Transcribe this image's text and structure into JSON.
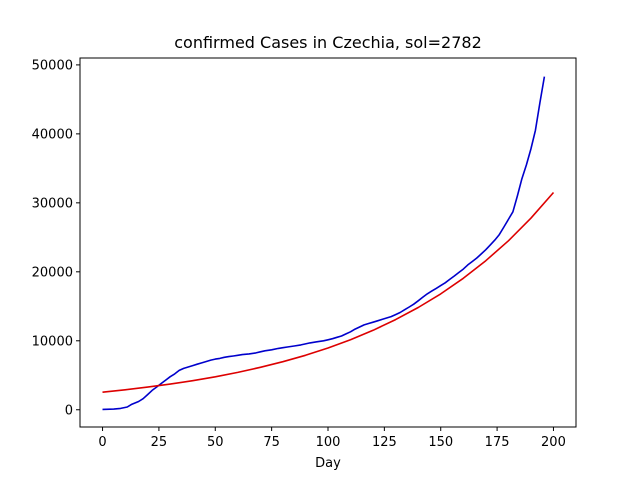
{
  "chart_data": {
    "type": "line",
    "title": "confirmed Cases in Czechia, sol=2782",
    "xlabel": "Day",
    "ylabel": "",
    "xlim": [
      -10,
      210
    ],
    "ylim": [
      -2500,
      51000
    ],
    "xticks": [
      0,
      25,
      50,
      75,
      100,
      125,
      150,
      175,
      200
    ],
    "yticks": [
      0,
      10000,
      20000,
      30000,
      40000,
      50000
    ],
    "grid": false,
    "series": [
      {
        "color": "#0000cc",
        "x": [
          0,
          5,
          8,
          11,
          13,
          16,
          18,
          20,
          22,
          24,
          26,
          28,
          30,
          32,
          34,
          36,
          38,
          40,
          42,
          44,
          46,
          48,
          50,
          52,
          54,
          56,
          58,
          60,
          62,
          65,
          68,
          70,
          72,
          75,
          78,
          80,
          82,
          85,
          88,
          90,
          92,
          95,
          98,
          100,
          102,
          104,
          106,
          108,
          110,
          112,
          114,
          116,
          118,
          120,
          122,
          124,
          126,
          128,
          130,
          132,
          134,
          136,
          138,
          140,
          142,
          144,
          146,
          148,
          150,
          152,
          154,
          156,
          158,
          160,
          162,
          164,
          166,
          168,
          170,
          172,
          174,
          176,
          178,
          180,
          182,
          184,
          186,
          188,
          190,
          192,
          194,
          196
        ],
        "y": [
          50,
          100,
          200,
          400,
          800,
          1200,
          1600,
          2200,
          2800,
          3300,
          3800,
          4300,
          4800,
          5200,
          5700,
          6000,
          6200,
          6400,
          6600,
          6800,
          7000,
          7200,
          7350,
          7450,
          7600,
          7700,
          7800,
          7900,
          8000,
          8100,
          8250,
          8400,
          8550,
          8700,
          8900,
          9000,
          9100,
          9250,
          9400,
          9550,
          9700,
          9850,
          10000,
          10150,
          10300,
          10500,
          10700,
          11000,
          11300,
          11700,
          12000,
          12300,
          12500,
          12700,
          12900,
          13100,
          13300,
          13500,
          13800,
          14100,
          14500,
          14900,
          15300,
          15800,
          16300,
          16800,
          17200,
          17600,
          18000,
          18400,
          18900,
          19400,
          19900,
          20400,
          21000,
          21500,
          22000,
          22600,
          23200,
          23900,
          24600,
          25400,
          26500,
          27600,
          28700,
          31000,
          33500,
          35500,
          37800,
          40500,
          44500,
          48300
        ]
      },
      {
        "color": "#dd0000",
        "x": [
          0,
          10,
          20,
          30,
          40,
          50,
          60,
          70,
          80,
          90,
          100,
          110,
          120,
          130,
          140,
          150,
          160,
          170,
          180,
          190,
          200
        ],
        "y": [
          2550,
          2890,
          3280,
          3720,
          4220,
          4780,
          5420,
          6150,
          6970,
          7900,
          8960,
          10160,
          11520,
          13070,
          14820,
          16800,
          19060,
          21610,
          24500,
          27780,
          31500
        ]
      }
    ]
  }
}
